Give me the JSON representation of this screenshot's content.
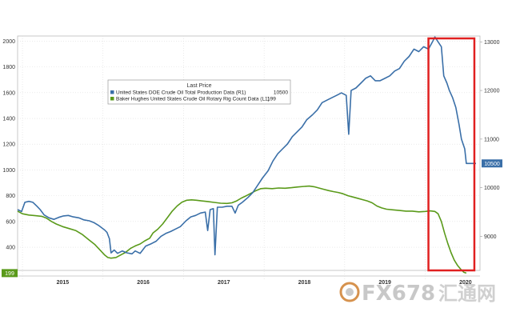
{
  "chart_data": {
    "type": "line",
    "title": "Last Price",
    "x_labels": [
      "2015",
      "2016",
      "2017",
      "2018",
      "2019",
      "2020"
    ],
    "left_axis": {
      "ticks": [
        400,
        600,
        800,
        1000,
        1200,
        1400,
        1600,
        1800,
        2000
      ],
      "range": [
        220,
        2040
      ]
    },
    "right_axis": {
      "ticks": [
        9000,
        10000,
        11000,
        12000,
        13000
      ],
      "range": [
        8300,
        13120
      ]
    },
    "series": [
      {
        "name": "United States DOE Crude Oil Total Production Data (R1)",
        "legend_value": "10500",
        "axis": "right",
        "color": "#3a6fa8",
        "last_value": "10500",
        "points": [
          [
            2014.94,
            9550
          ],
          [
            2014.99,
            9510
          ],
          [
            2015.03,
            9700
          ],
          [
            2015.08,
            9720
          ],
          [
            2015.13,
            9700
          ],
          [
            2015.18,
            9620
          ],
          [
            2015.22,
            9550
          ],
          [
            2015.27,
            9440
          ],
          [
            2015.33,
            9380
          ],
          [
            2015.39,
            9350
          ],
          [
            2015.45,
            9390
          ],
          [
            2015.51,
            9420
          ],
          [
            2015.57,
            9430
          ],
          [
            2015.63,
            9400
          ],
          [
            2015.7,
            9380
          ],
          [
            2015.76,
            9340
          ],
          [
            2015.83,
            9320
          ],
          [
            2015.89,
            9280
          ],
          [
            2015.95,
            9220
          ],
          [
            2016.02,
            9130
          ],
          [
            2016.05,
            9080
          ],
          [
            2016.08,
            8950
          ],
          [
            2016.1,
            8660
          ],
          [
            2016.14,
            8720
          ],
          [
            2016.18,
            8650
          ],
          [
            2016.24,
            8700
          ],
          [
            2016.3,
            8660
          ],
          [
            2016.36,
            8640
          ],
          [
            2016.4,
            8700
          ],
          [
            2016.46,
            8650
          ],
          [
            2016.53,
            8800
          ],
          [
            2016.6,
            8850
          ],
          [
            2016.66,
            8900
          ],
          [
            2016.72,
            9000
          ],
          [
            2016.78,
            9060
          ],
          [
            2016.84,
            9100
          ],
          [
            2016.9,
            9150
          ],
          [
            2016.96,
            9200
          ],
          [
            2017.03,
            9320
          ],
          [
            2017.09,
            9400
          ],
          [
            2017.15,
            9430
          ],
          [
            2017.21,
            9480
          ],
          [
            2017.27,
            9500
          ],
          [
            2017.3,
            9120
          ],
          [
            2017.33,
            9550
          ],
          [
            2017.37,
            9570
          ],
          [
            2017.39,
            8620
          ],
          [
            2017.42,
            9600
          ],
          [
            2017.48,
            9600
          ],
          [
            2017.54,
            9620
          ],
          [
            2017.6,
            9620
          ],
          [
            2017.64,
            9480
          ],
          [
            2017.68,
            9640
          ],
          [
            2017.73,
            9700
          ],
          [
            2017.8,
            9800
          ],
          [
            2017.86,
            9900
          ],
          [
            2017.92,
            10050
          ],
          [
            2017.98,
            10200
          ],
          [
            2018.05,
            10350
          ],
          [
            2018.11,
            10550
          ],
          [
            2018.17,
            10700
          ],
          [
            2018.23,
            10800
          ],
          [
            2018.29,
            10900
          ],
          [
            2018.35,
            11050
          ],
          [
            2018.41,
            11150
          ],
          [
            2018.47,
            11250
          ],
          [
            2018.53,
            11400
          ],
          [
            2018.6,
            11500
          ],
          [
            2018.66,
            11600
          ],
          [
            2018.72,
            11750
          ],
          [
            2018.78,
            11800
          ],
          [
            2018.84,
            11850
          ],
          [
            2018.9,
            11900
          ],
          [
            2018.96,
            11950
          ],
          [
            2019.02,
            11900
          ],
          [
            2019.05,
            11100
          ],
          [
            2019.08,
            12000
          ],
          [
            2019.14,
            12050
          ],
          [
            2019.2,
            12150
          ],
          [
            2019.26,
            12250
          ],
          [
            2019.32,
            12300
          ],
          [
            2019.38,
            12200
          ],
          [
            2019.44,
            12200
          ],
          [
            2019.5,
            12250
          ],
          [
            2019.56,
            12300
          ],
          [
            2019.62,
            12400
          ],
          [
            2019.68,
            12450
          ],
          [
            2019.74,
            12600
          ],
          [
            2019.8,
            12700
          ],
          [
            2019.86,
            12850
          ],
          [
            2019.92,
            12800
          ],
          [
            2019.98,
            12900
          ],
          [
            2020.04,
            12850
          ],
          [
            2020.09,
            13000
          ],
          [
            2020.12,
            13100
          ],
          [
            2020.16,
            13000
          ],
          [
            2020.2,
            12900
          ],
          [
            2020.23,
            12300
          ],
          [
            2020.27,
            12150
          ],
          [
            2020.3,
            12000
          ],
          [
            2020.34,
            11850
          ],
          [
            2020.38,
            11650
          ],
          [
            2020.42,
            11300
          ],
          [
            2020.45,
            11000
          ],
          [
            2020.49,
            10800
          ],
          [
            2020.51,
            10500
          ],
          [
            2020.56,
            10500
          ],
          [
            2020.63,
            10500
          ]
        ]
      },
      {
        "name": "Baker Hughes United States Crude Oil Rotary Rig Count Data (L1)",
        "legend_value": "199",
        "axis": "left",
        "color": "#5a9a1a",
        "last_value": "199",
        "points": [
          [
            2014.94,
            680
          ],
          [
            2015.0,
            660
          ],
          [
            2015.08,
            650
          ],
          [
            2015.16,
            645
          ],
          [
            2015.24,
            640
          ],
          [
            2015.3,
            625
          ],
          [
            2015.36,
            600
          ],
          [
            2015.42,
            580
          ],
          [
            2015.5,
            560
          ],
          [
            2015.58,
            545
          ],
          [
            2015.66,
            530
          ],
          [
            2015.74,
            500
          ],
          [
            2015.82,
            460
          ],
          [
            2015.9,
            420
          ],
          [
            2015.96,
            380
          ],
          [
            2016.02,
            340
          ],
          [
            2016.06,
            320
          ],
          [
            2016.1,
            315
          ],
          [
            2016.16,
            320
          ],
          [
            2016.22,
            340
          ],
          [
            2016.28,
            360
          ],
          [
            2016.34,
            390
          ],
          [
            2016.4,
            410
          ],
          [
            2016.46,
            425
          ],
          [
            2016.52,
            450
          ],
          [
            2016.58,
            470
          ],
          [
            2016.62,
            510
          ],
          [
            2016.68,
            540
          ],
          [
            2016.74,
            580
          ],
          [
            2016.8,
            630
          ],
          [
            2016.86,
            680
          ],
          [
            2016.92,
            720
          ],
          [
            2016.98,
            750
          ],
          [
            2017.04,
            765
          ],
          [
            2017.1,
            768
          ],
          [
            2017.16,
            765
          ],
          [
            2017.22,
            760
          ],
          [
            2017.3,
            755
          ],
          [
            2017.38,
            748
          ],
          [
            2017.46,
            742
          ],
          [
            2017.54,
            740
          ],
          [
            2017.6,
            745
          ],
          [
            2017.66,
            760
          ],
          [
            2017.72,
            782
          ],
          [
            2017.78,
            800
          ],
          [
            2017.84,
            820
          ],
          [
            2017.9,
            840
          ],
          [
            2017.96,
            855
          ],
          [
            2018.02,
            858
          ],
          [
            2018.1,
            855
          ],
          [
            2018.18,
            860
          ],
          [
            2018.26,
            858
          ],
          [
            2018.34,
            862
          ],
          [
            2018.42,
            868
          ],
          [
            2018.5,
            872
          ],
          [
            2018.56,
            875
          ],
          [
            2018.62,
            870
          ],
          [
            2018.68,
            860
          ],
          [
            2018.74,
            850
          ],
          [
            2018.8,
            840
          ],
          [
            2018.86,
            832
          ],
          [
            2018.92,
            825
          ],
          [
            2018.98,
            815
          ],
          [
            2019.04,
            800
          ],
          [
            2019.1,
            790
          ],
          [
            2019.16,
            780
          ],
          [
            2019.22,
            770
          ],
          [
            2019.28,
            760
          ],
          [
            2019.34,
            745
          ],
          [
            2019.4,
            720
          ],
          [
            2019.46,
            705
          ],
          [
            2019.52,
            695
          ],
          [
            2019.6,
            690
          ],
          [
            2019.68,
            685
          ],
          [
            2019.76,
            680
          ],
          [
            2019.84,
            680
          ],
          [
            2019.92,
            675
          ],
          [
            2020.0,
            678
          ],
          [
            2020.06,
            682
          ],
          [
            2020.12,
            678
          ],
          [
            2020.16,
            660
          ],
          [
            2020.2,
            600
          ],
          [
            2020.24,
            510
          ],
          [
            2020.28,
            430
          ],
          [
            2020.32,
            360
          ],
          [
            2020.36,
            300
          ],
          [
            2020.4,
            260
          ],
          [
            2020.44,
            230
          ],
          [
            2020.48,
            205
          ],
          [
            2020.51,
            199
          ]
        ]
      }
    ],
    "highlight_box": {
      "from": 2020.04,
      "to": 2020.61,
      "color": "#e02020"
    }
  },
  "watermark": {
    "brand": "FX678",
    "cn": "汇通网"
  },
  "colors": {
    "grid": "#dddddd",
    "axis": "#bbbbbb",
    "watermark": "#bfbfbf"
  }
}
